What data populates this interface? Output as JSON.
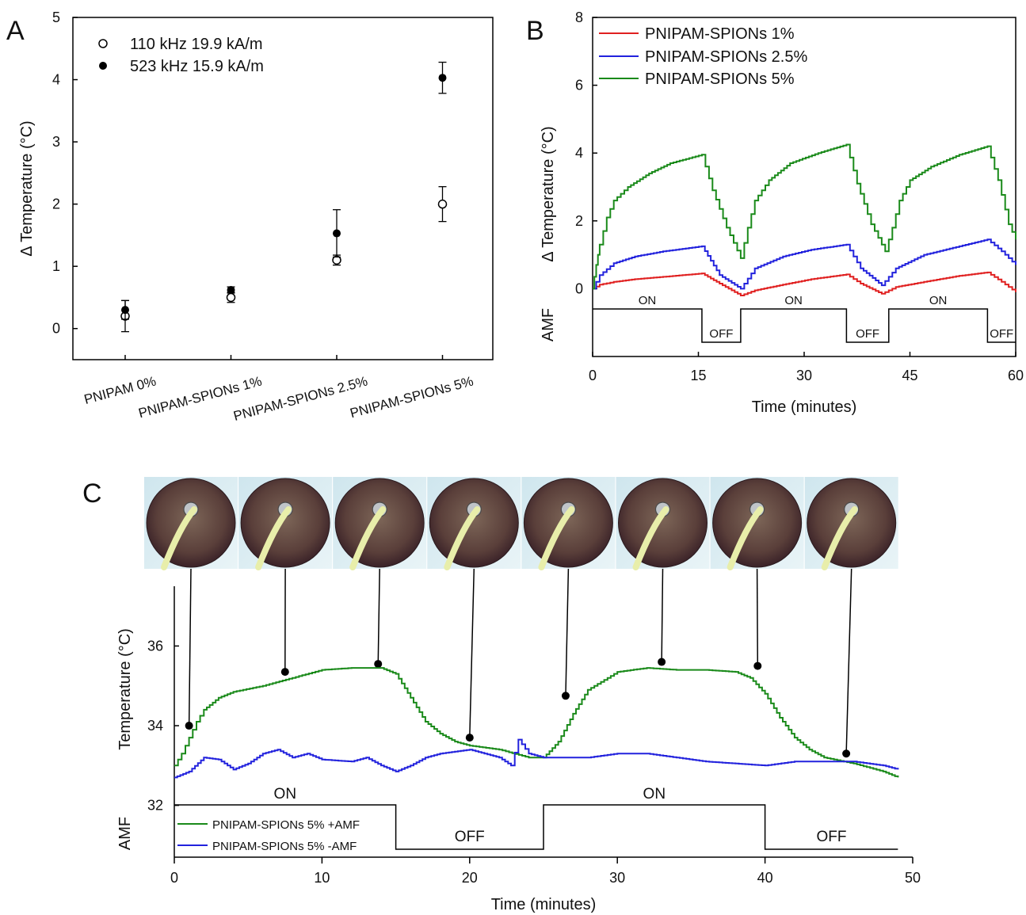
{
  "panels": {
    "a": {
      "letter": "A"
    },
    "b": {
      "letter": "B"
    },
    "c": {
      "letter": "C"
    }
  },
  "chart_data": [
    {
      "id": "A",
      "type": "scatter",
      "ylabel": "Δ Temperature (°C)",
      "categories": [
        "PNIPAM 0%",
        "PNIPAM-SPIONs 1%",
        "PNIPAM-SPIONs 2.5%",
        "PNIPAM-SPIONs 5%"
      ],
      "ylim": [
        -0.5,
        5
      ],
      "yticks": [
        0,
        1,
        2,
        3,
        4,
        5
      ],
      "legend_position": "top-left",
      "series": [
        {
          "name": "110 kHz 19.9 kA/m",
          "marker": "open-circle",
          "values": [
            0.2,
            0.5,
            1.1,
            2.0
          ],
          "errors": [
            0.25,
            0.08,
            0.08,
            0.28
          ]
        },
        {
          "name": "523 kHz 15.9 kA/m",
          "marker": "filled-circle",
          "values": [
            0.3,
            0.62,
            1.53,
            4.03
          ],
          "errors": [
            0.15,
            0.05,
            0.38,
            0.25
          ]
        }
      ]
    },
    {
      "id": "B",
      "type": "line",
      "xlabel": "Time (minutes)",
      "ylabel": "Δ Temperature (°C)",
      "xlim": [
        0,
        60
      ],
      "ylim": [
        -2,
        8
      ],
      "xticks": [
        0,
        15,
        30,
        45,
        60
      ],
      "yticks": [
        0,
        2,
        4,
        6,
        8
      ],
      "legend_position": "top-left",
      "series": [
        {
          "name": "PNIPAM-SPIONs 1%",
          "color": "#e02020",
          "x": [
            0,
            1,
            3,
            6,
            10,
            15.5,
            18,
            21,
            23,
            27,
            31,
            36,
            38,
            41,
            43,
            47,
            52,
            56,
            58,
            60
          ],
          "y": [
            0,
            0.12,
            0.2,
            0.28,
            0.35,
            0.45,
            0.15,
            -0.2,
            -0.05,
            0.12,
            0.28,
            0.42,
            0.15,
            -0.15,
            0.05,
            0.2,
            0.38,
            0.48,
            0.2,
            -0.1
          ]
        },
        {
          "name": "PNIPAM-SPIONs 2.5%",
          "color": "#2222dd",
          "x": [
            0,
            1,
            3,
            6,
            10,
            15.5,
            18,
            21,
            23,
            27,
            31,
            36,
            38,
            41,
            43,
            47,
            52,
            56,
            58,
            60
          ],
          "y": [
            0,
            0.4,
            0.75,
            0.95,
            1.1,
            1.25,
            0.4,
            0.0,
            0.6,
            0.95,
            1.15,
            1.3,
            0.6,
            0.1,
            0.6,
            1.0,
            1.25,
            1.45,
            1.1,
            0.7
          ]
        },
        {
          "name": "PNIPAM-SPIONs 5%",
          "color": "#1a8a1a",
          "x": [
            0,
            0.5,
            1,
            2,
            3,
            5,
            8,
            11,
            15.5,
            17,
            19,
            21,
            22,
            23,
            25,
            28,
            32,
            36,
            37.5,
            39.5,
            41.5,
            42.5,
            43.5,
            45,
            48,
            52,
            56,
            57.5,
            59,
            60
          ],
          "y": [
            0,
            0.7,
            1.3,
            2.1,
            2.6,
            3.0,
            3.4,
            3.7,
            3.95,
            2.9,
            1.8,
            0.9,
            1.8,
            2.6,
            3.2,
            3.7,
            4.0,
            4.25,
            3.1,
            1.9,
            1.1,
            1.8,
            2.6,
            3.2,
            3.6,
            3.95,
            4.2,
            3.2,
            1.9,
            1.45
          ]
        }
      ],
      "amf": {
        "label": "AMF",
        "on_label": "ON",
        "off_label": "OFF",
        "segments": [
          {
            "state": "ON",
            "start": 0,
            "end": 15.5
          },
          {
            "state": "OFF",
            "start": 15.5,
            "end": 21
          },
          {
            "state": "ON",
            "start": 21,
            "end": 36
          },
          {
            "state": "OFF",
            "start": 36,
            "end": 42
          },
          {
            "state": "ON",
            "start": 42,
            "end": 56
          },
          {
            "state": "OFF",
            "start": 56,
            "end": 60
          }
        ]
      }
    },
    {
      "id": "C",
      "type": "line",
      "xlabel": "Time (minutes)",
      "ylabel": "Temperature (°C)",
      "xlim": [
        0,
        50
      ],
      "ylim": [
        30.7,
        37.5
      ],
      "xticks": [
        0,
        10,
        20,
        30,
        40,
        50
      ],
      "yticks": [
        32,
        34,
        36
      ],
      "legend_position": "bottom-left",
      "series": [
        {
          "name": "PNIPAM-SPIONs 5% +AMF",
          "color": "#1a8a1a",
          "x": [
            0,
            0.5,
            1,
            1.5,
            2,
            3,
            4,
            6,
            8,
            10,
            12,
            14,
            15,
            16,
            17,
            18,
            19,
            20,
            22,
            24,
            25,
            26,
            27,
            28,
            30,
            32,
            34,
            36,
            38,
            39,
            40,
            41,
            42,
            43,
            44,
            46,
            48,
            49
          ],
          "y": [
            33.0,
            33.3,
            33.7,
            34.1,
            34.4,
            34.7,
            34.85,
            35.0,
            35.2,
            35.4,
            35.45,
            35.45,
            35.3,
            34.7,
            34.1,
            33.8,
            33.6,
            33.5,
            33.4,
            33.2,
            33.2,
            33.6,
            34.3,
            34.9,
            35.35,
            35.45,
            35.4,
            35.4,
            35.35,
            35.2,
            34.8,
            34.2,
            33.7,
            33.4,
            33.2,
            33.05,
            32.85,
            32.7
          ]
        },
        {
          "name": "PNIPAM-SPIONs 5% -AMF",
          "color": "#2222dd",
          "x": [
            0,
            1,
            2,
            3,
            4,
            5,
            6,
            7,
            8,
            9,
            10,
            12,
            13,
            14,
            15,
            16,
            17,
            18,
            19,
            20,
            21,
            22,
            22.8,
            23.3,
            24,
            25,
            26,
            28,
            30,
            32,
            34,
            36,
            38,
            40,
            42,
            44,
            46,
            48,
            49
          ],
          "y": [
            32.7,
            32.85,
            33.2,
            33.15,
            32.9,
            33.05,
            33.3,
            33.4,
            33.2,
            33.3,
            33.15,
            33.1,
            33.2,
            33.0,
            32.85,
            33.0,
            33.2,
            33.3,
            33.35,
            33.4,
            33.3,
            33.2,
            33.0,
            33.65,
            33.3,
            33.2,
            33.2,
            33.2,
            33.3,
            33.3,
            33.2,
            33.1,
            33.05,
            33.0,
            33.1,
            33.1,
            33.1,
            33.0,
            32.9
          ]
        }
      ],
      "markers": [
        {
          "x": 1.0,
          "y": 34.0
        },
        {
          "x": 7.5,
          "y": 35.35
        },
        {
          "x": 13.8,
          "y": 35.55
        },
        {
          "x": 20.0,
          "y": 33.7
        },
        {
          "x": 26.5,
          "y": 34.75
        },
        {
          "x": 33.0,
          "y": 35.6
        },
        {
          "x": 39.5,
          "y": 35.5
        },
        {
          "x": 45.5,
          "y": 33.3
        }
      ],
      "photo_count": 8,
      "amf": {
        "label": "AMF",
        "on_label": "ON",
        "off_label": "OFF",
        "segments": [
          {
            "state": "ON",
            "start": 0,
            "end": 15
          },
          {
            "state": "OFF",
            "start": 15,
            "end": 25
          },
          {
            "state": "ON",
            "start": 25,
            "end": 40
          },
          {
            "state": "OFF",
            "start": 40,
            "end": 49
          }
        ]
      }
    }
  ]
}
